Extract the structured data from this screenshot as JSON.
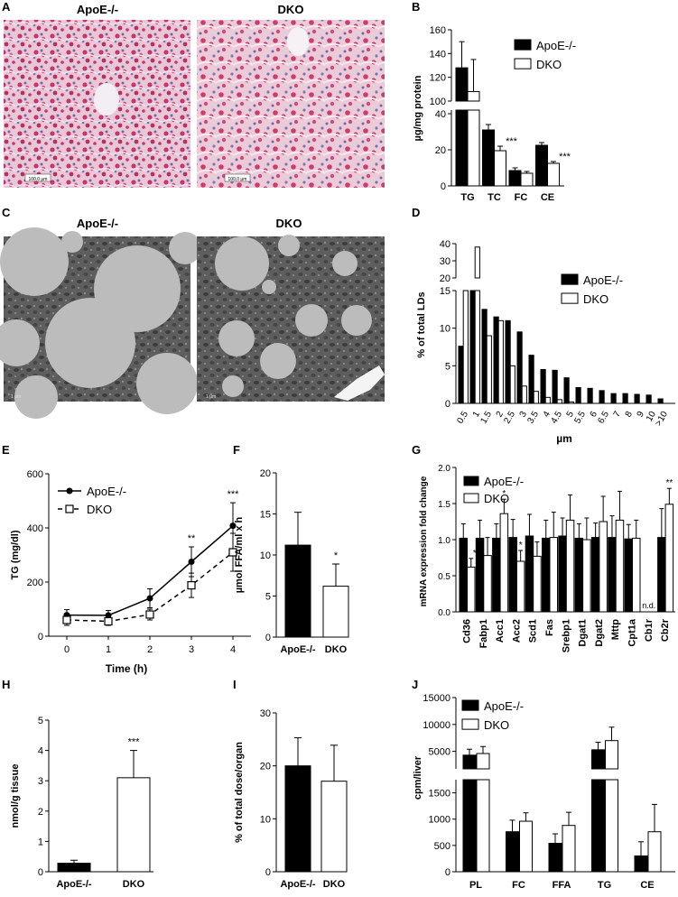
{
  "colors": {
    "apoe": "#000000",
    "dko": "#ffffff",
    "stroke": "#000000",
    "hist_pink": "#c8356a",
    "hist_blue": "#7a78b8",
    "em_gray": "#5a5a5a",
    "em_droplet": "#b9b9b9"
  },
  "panels": {
    "A": "A",
    "B": "B",
    "C": "C",
    "D": "D",
    "E": "E",
    "F": "F",
    "G": "G",
    "H": "H",
    "I": "I",
    "J": "J"
  },
  "micrographs": {
    "hist_left": "ApoE-/-",
    "hist_right": "DKO",
    "hist_scale": "100,0 µm",
    "em_left": "ApoE-/-",
    "em_right": "DKO",
    "em_scale": "1 µm"
  },
  "legend": {
    "apoe": "ApoE-/-",
    "dko": "DKO"
  },
  "chart_data": [
    {
      "id": "B",
      "type": "bar",
      "categories": [
        "TG",
        "TC",
        "FC",
        "CE"
      ],
      "series": [
        {
          "name": "ApoE-/-",
          "values": [
            128,
            31,
            8.5,
            22.5
          ],
          "errors": [
            22,
            3,
            1.5,
            1.5
          ]
        },
        {
          "name": "DKO",
          "values": [
            108,
            19.5,
            7,
            12.5
          ],
          "errors": [
            27,
            2.5,
            1,
            1
          ]
        }
      ],
      "ylabel": "µg/mg protein",
      "ticks_low": [
        "0",
        "20",
        "40"
      ],
      "ticks_high": [
        "100",
        "120",
        "140",
        "160"
      ],
      "ylim_low": [
        0,
        42
      ],
      "ylim_high": [
        100,
        160
      ],
      "sig": [
        {
          "cat": 1,
          "text": "***"
        },
        {
          "cat": 2,
          "text": "*"
        },
        {
          "cat": 3,
          "text": "***"
        }
      ]
    },
    {
      "id": "D",
      "type": "bar",
      "categories": [
        "0.5",
        "1",
        "1.5",
        "2",
        "2.5",
        "3",
        "3.5",
        "4",
        "4.5",
        "5",
        "5.5",
        "6",
        "6.5",
        "7",
        "8",
        "9",
        "10",
        ">10"
      ],
      "series": [
        {
          "name": "ApoE-/-",
          "values": [
            7.6,
            20,
            12.5,
            11.5,
            11,
            9.5,
            6.4,
            4.5,
            4.4,
            3.4,
            2.1,
            2,
            1.7,
            1.3,
            1.3,
            1.2,
            1.1,
            0.6
          ]
        },
        {
          "name": "DKO",
          "values": [
            20,
            38,
            9,
            11,
            5,
            2.3,
            1.6,
            0.8,
            0.5,
            0.2,
            0,
            0,
            0,
            0,
            0,
            0,
            0,
            0
          ]
        }
      ],
      "ylabel": "% of total LDs",
      "xlabel": "µm",
      "ticks_low": [
        "0",
        "5",
        "10",
        "15"
      ],
      "ticks_high": [
        "20",
        "30",
        "40"
      ]
    },
    {
      "id": "E",
      "type": "line",
      "x": [
        0,
        1,
        2,
        3,
        4
      ],
      "series": [
        {
          "name": "ApoE-/-",
          "values": [
            78,
            77,
            140,
            275,
            408
          ],
          "errors": [
            20,
            18,
            35,
            55,
            85
          ]
        },
        {
          "name": "DKO",
          "values": [
            60,
            55,
            80,
            188,
            310
          ],
          "errors": [
            20,
            15,
            20,
            45,
            70
          ]
        }
      ],
      "ylabel": "TG (mg/dl)",
      "xlabel": "Time (h)",
      "ylim": [
        0,
        600
      ],
      "yticks": [
        "0",
        "200",
        "400",
        "600"
      ],
      "xticks": [
        "0",
        "1",
        "2",
        "3",
        "4"
      ],
      "sig": [
        {
          "x": 3,
          "text": "**"
        },
        {
          "x": 4,
          "text": "***"
        }
      ]
    },
    {
      "id": "F",
      "type": "bar",
      "categories": [
        "ApoE-/-",
        "DKO"
      ],
      "values": [
        11.2,
        6.2
      ],
      "errors": [
        4,
        2.7
      ],
      "ylabel": "µmol FFA/ml x h",
      "ylim": [
        0,
        20
      ],
      "yticks": [
        "0",
        "5",
        "10",
        "15",
        "20"
      ],
      "sig": [
        {
          "cat": 1,
          "text": "*"
        }
      ]
    },
    {
      "id": "G",
      "type": "bar",
      "categories": [
        "Cd36",
        "Fabp1",
        "Acc1",
        "Acc2",
        "Scd1",
        "Fas",
        "Srebp1",
        "Dgat1",
        "Dgat2",
        "Mttp",
        "Cpt1a",
        "Cb1r",
        "Cb2r"
      ],
      "series": [
        {
          "name": "ApoE-/-",
          "values": [
            1.02,
            1.02,
            1.02,
            1.03,
            1.05,
            1.02,
            1.05,
            1.02,
            1.03,
            1.03,
            1.01,
            null,
            1.03
          ],
          "errors": [
            0.2,
            0.25,
            0.2,
            0.25,
            0.3,
            0.25,
            0.25,
            0.2,
            0.2,
            0.3,
            0.2,
            null,
            0.4
          ]
        },
        {
          "name": "DKO",
          "values": [
            0.62,
            0.78,
            1.36,
            0.7,
            0.77,
            1.03,
            1.27,
            1,
            1.25,
            1.27,
            1.02,
            null,
            1.49
          ],
          "errors": [
            0.12,
            0.25,
            0.2,
            0.15,
            0.2,
            0.35,
            0.35,
            0.3,
            0.35,
            0.4,
            0.25,
            null,
            0.22
          ]
        }
      ],
      "ylabel": "mRNA expression fold change",
      "ylim": [
        0,
        2
      ],
      "yticks": [
        "0.0",
        "0.5",
        "1.0",
        "1.5",
        "2.0"
      ],
      "nd": "n.d.",
      "sig": [
        {
          "cat": 0,
          "s": 1,
          "text": "**"
        },
        {
          "cat": 2,
          "s": 1,
          "text": "*"
        },
        {
          "cat": 3,
          "s": 1,
          "text": "*"
        },
        {
          "cat": 12,
          "s": 1,
          "text": "**"
        }
      ]
    },
    {
      "id": "H",
      "type": "bar",
      "categories": [
        "ApoE-/-",
        "DKO"
      ],
      "values": [
        0.28,
        3.1
      ],
      "errors": [
        0.1,
        0.9
      ],
      "ylabel": "nmol/g tissue",
      "ylim": [
        0,
        5
      ],
      "yticks": [
        "0",
        "1",
        "2",
        "3",
        "4",
        "5"
      ],
      "sig": [
        {
          "cat": 1,
          "text": "***"
        }
      ]
    },
    {
      "id": "I",
      "type": "bar",
      "categories": [
        "ApoE-/-",
        "DKO"
      ],
      "values": [
        20,
        17.1
      ],
      "errors": [
        5.3,
        6.8
      ],
      "ylabel": "% of total dose/organ",
      "ylim": [
        0,
        30
      ],
      "yticks": [
        "0",
        "10",
        "20",
        "30"
      ]
    },
    {
      "id": "J",
      "type": "bar",
      "categories": [
        "PL",
        "FC",
        "FFA",
        "TG",
        "CE"
      ],
      "series": [
        {
          "name": "ApoE-/-",
          "values": [
            4300,
            760,
            540,
            5300,
            300
          ],
          "errors": [
            1100,
            220,
            180,
            1400,
            270
          ]
        },
        {
          "name": "DKO",
          "values": [
            4600,
            960,
            880,
            7000,
            760
          ],
          "errors": [
            1300,
            160,
            250,
            2500,
            520
          ]
        }
      ],
      "ylabel": "cpm/liver",
      "ticks_low": [
        "0",
        "500",
        "1000",
        "1500"
      ],
      "ticks_high": [
        "5000",
        "10000",
        "15000"
      ],
      "ylim_low": [
        0,
        1750
      ],
      "ylim_high": [
        1750,
        15000
      ]
    }
  ]
}
